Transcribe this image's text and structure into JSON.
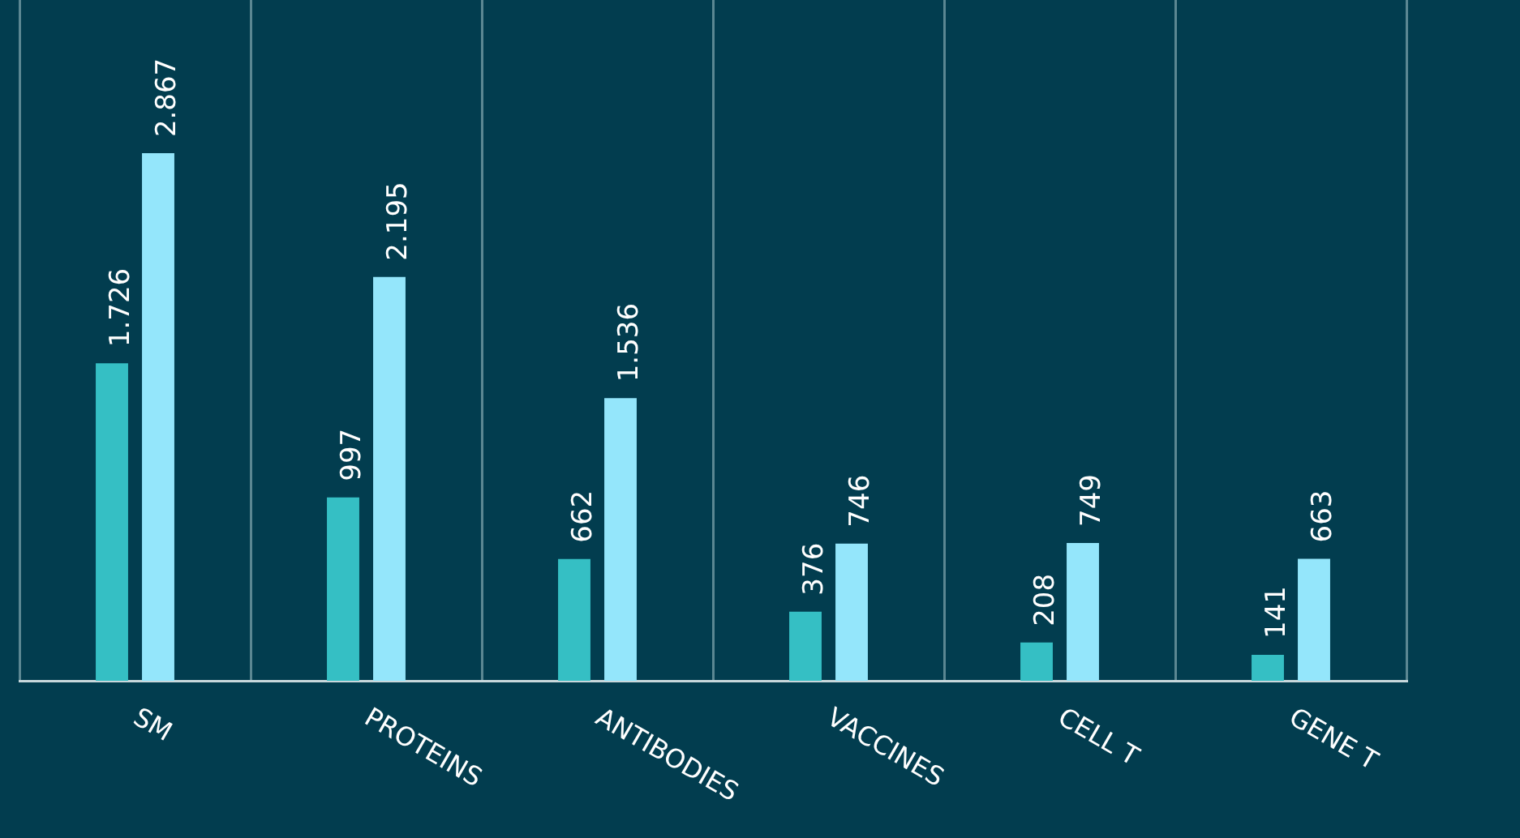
{
  "chart_data": {
    "type": "bar",
    "categories": [
      "SM",
      "PROTEINS",
      "ANTIBODIES",
      "VACCINES",
      "CELL T",
      "GENE T"
    ],
    "series": [
      {
        "color": "#35bfc4",
        "values": [
          1726,
          997,
          662,
          376,
          208,
          141
        ],
        "value_labels": [
          "1.726",
          "997",
          "662",
          "376",
          "208",
          "141"
        ]
      },
      {
        "color": "#94e6fb",
        "values": [
          2867,
          2195,
          1536,
          746,
          749,
          663
        ],
        "value_labels": [
          "2.867",
          "2.195",
          "1.536",
          "746",
          "749",
          "663"
        ]
      }
    ],
    "ylim": [
      0,
      3700
    ],
    "tick_labels": "x",
    "grid": "x",
    "legend": false
  }
}
